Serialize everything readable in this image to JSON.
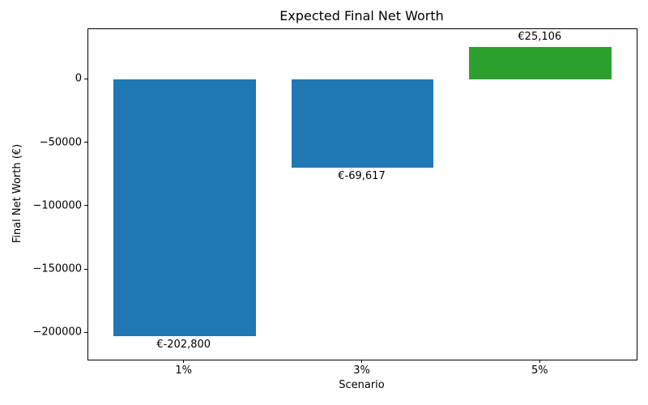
{
  "chart_data": {
    "type": "bar",
    "title": "Expected Final Net Worth",
    "xlabel": "Scenario",
    "ylabel": "Final Net Worth (€)",
    "categories": [
      "1%",
      "3%",
      "5%"
    ],
    "values": [
      -202800,
      -69617,
      25106
    ],
    "bar_labels": [
      "€-202,800",
      "€-69,617",
      "€25,106"
    ],
    "bar_colors": [
      "#1f77b4",
      "#1f77b4",
      "#2ca02c"
    ],
    "negative_color": "#1f77b4",
    "positive_color": "#2ca02c",
    "yticks": [
      0,
      -50000,
      -100000,
      -150000,
      -200000
    ],
    "ytick_labels": [
      "0",
      "−50000",
      "−100000",
      "−150000",
      "−200000"
    ],
    "ylim": [
      -221100,
      39400
    ],
    "xlim": [
      -0.54,
      2.54
    ],
    "bar_width": 0.8,
    "grid": false,
    "legend": "none",
    "background": "#ffffff",
    "axis_color": "#000000"
  }
}
